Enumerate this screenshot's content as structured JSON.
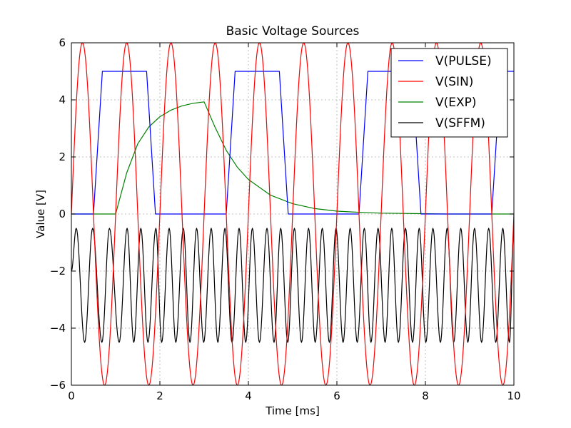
{
  "chart_data": {
    "type": "line",
    "title": "Basic Voltage Sources",
    "xlabel": "Time [ms]",
    "ylabel": "Value [V]",
    "xlim": [
      0,
      10
    ],
    "ylim": [
      -6,
      6
    ],
    "xticks": [
      0,
      2,
      4,
      6,
      8,
      10
    ],
    "yticks": [
      -6,
      -4,
      -2,
      0,
      2,
      4,
      6
    ],
    "xtick_labels": [
      "0",
      "2",
      "4",
      "6",
      "8",
      "10"
    ],
    "ytick_labels": [
      "−6",
      "−4",
      "−2",
      "0",
      "2",
      "4",
      "6"
    ],
    "grid": true,
    "legend_position": "top-right",
    "series": [
      {
        "name": "V(PULSE)",
        "color": "#0000ff",
        "x": [
          0,
          0.5,
          0.7,
          1.7,
          1.9,
          3.5,
          3.7,
          4.7,
          4.9,
          6.5,
          6.7,
          7.7,
          7.9,
          9.5,
          9.7,
          10.0
        ],
        "y": [
          0,
          0,
          5,
          5,
          0,
          0,
          5,
          5,
          0,
          0,
          5,
          5,
          0,
          0,
          5,
          5
        ]
      },
      {
        "name": "V(SIN)",
        "color": "#ff0000",
        "x": [
          0,
          0.25,
          0.5,
          0.75,
          1.0,
          1.25,
          1.5,
          1.75,
          2.0,
          2.25,
          2.5,
          2.75,
          3.0,
          3.25,
          3.5,
          3.75,
          4.0,
          4.25,
          4.5,
          4.75,
          5.0,
          5.25,
          5.5,
          5.75,
          6.0,
          6.25,
          6.5,
          6.75,
          7.0,
          7.25,
          7.5,
          7.75,
          8.0,
          8.25,
          8.5,
          8.75,
          9.0,
          9.25,
          9.5,
          9.75,
          10.0
        ],
        "y": [
          0,
          6,
          0,
          -6,
          0,
          6,
          0,
          -6,
          0,
          6,
          0,
          -6,
          0,
          6,
          0,
          -6,
          0,
          6,
          0,
          -6,
          0,
          6,
          0,
          -6,
          0,
          6,
          0,
          -6,
          0,
          6,
          0,
          -6,
          0,
          6,
          0,
          -6,
          0,
          6,
          0,
          -6,
          0
        ]
      },
      {
        "name": "V(EXP)",
        "color": "#008000",
        "x": [
          0,
          0.5,
          1.0,
          1.25,
          1.5,
          1.75,
          2.0,
          2.25,
          2.5,
          2.75,
          3.0,
          3.25,
          3.5,
          3.75,
          4.0,
          4.5,
          5.0,
          5.5,
          6.0,
          6.5,
          7.0,
          7.5,
          8.0,
          8.5,
          9.0,
          9.5,
          10.0
        ],
        "y": [
          0,
          0,
          0,
          1.44,
          2.46,
          3.05,
          3.41,
          3.64,
          3.79,
          3.88,
          3.93,
          3.03,
          2.23,
          1.64,
          1.21,
          0.66,
          0.36,
          0.19,
          0.1,
          0.06,
          0.03,
          0.02,
          0.01,
          0.0,
          0.0,
          0.0,
          0.0
        ]
      },
      {
        "name": "V(SFFM)",
        "color": "#000000",
        "x": [
          0,
          0.11,
          0.3,
          0.48,
          0.69,
          0.86,
          1.08,
          1.26,
          1.41,
          1.57,
          1.73,
          1.91,
          2.04,
          2.21,
          2.36,
          2.53,
          2.68,
          2.83,
          2.99,
          3.16,
          3.31,
          3.47,
          3.63,
          3.79,
          3.94,
          4.09,
          4.25,
          4.42,
          4.58,
          4.73,
          4.89,
          5.04,
          5.2,
          5.36,
          5.51,
          5.67,
          5.83,
          5.98,
          6.14,
          6.3,
          6.46,
          6.62,
          6.77,
          6.93,
          7.09,
          7.24,
          7.39,
          7.55,
          7.71,
          7.86,
          8.01,
          8.17,
          8.34,
          8.49,
          8.64,
          8.8,
          8.96,
          9.11,
          9.27,
          9.43,
          9.59,
          9.75,
          9.9,
          10.0
        ],
        "y": [
          -2.0,
          -0.5,
          -4.5,
          -0.5,
          -4.5,
          -0.5,
          -4.5,
          -0.5,
          -4.5,
          -0.5,
          -4.5,
          -0.5,
          -4.5,
          -0.5,
          -4.5,
          -0.5,
          -4.5,
          -0.5,
          -4.5,
          -0.5,
          -4.5,
          -0.5,
          -4.5,
          -0.5,
          -4.5,
          -0.5,
          -4.5,
          -0.5,
          -4.5,
          -0.5,
          -4.5,
          -0.5,
          -4.5,
          -0.5,
          -4.5,
          -0.5,
          -4.5,
          -0.5,
          -4.5,
          -0.5,
          -4.5,
          -0.5,
          -4.5,
          -0.5,
          -4.5,
          -0.5,
          -4.5,
          -0.5,
          -4.5,
          -0.5,
          -4.5,
          -0.5,
          -4.5,
          -0.5,
          -4.5,
          -0.5,
          -4.5,
          -0.5,
          -4.5,
          -0.5,
          -4.5,
          -0.5,
          -4.5,
          -0.5
        ]
      }
    ]
  }
}
